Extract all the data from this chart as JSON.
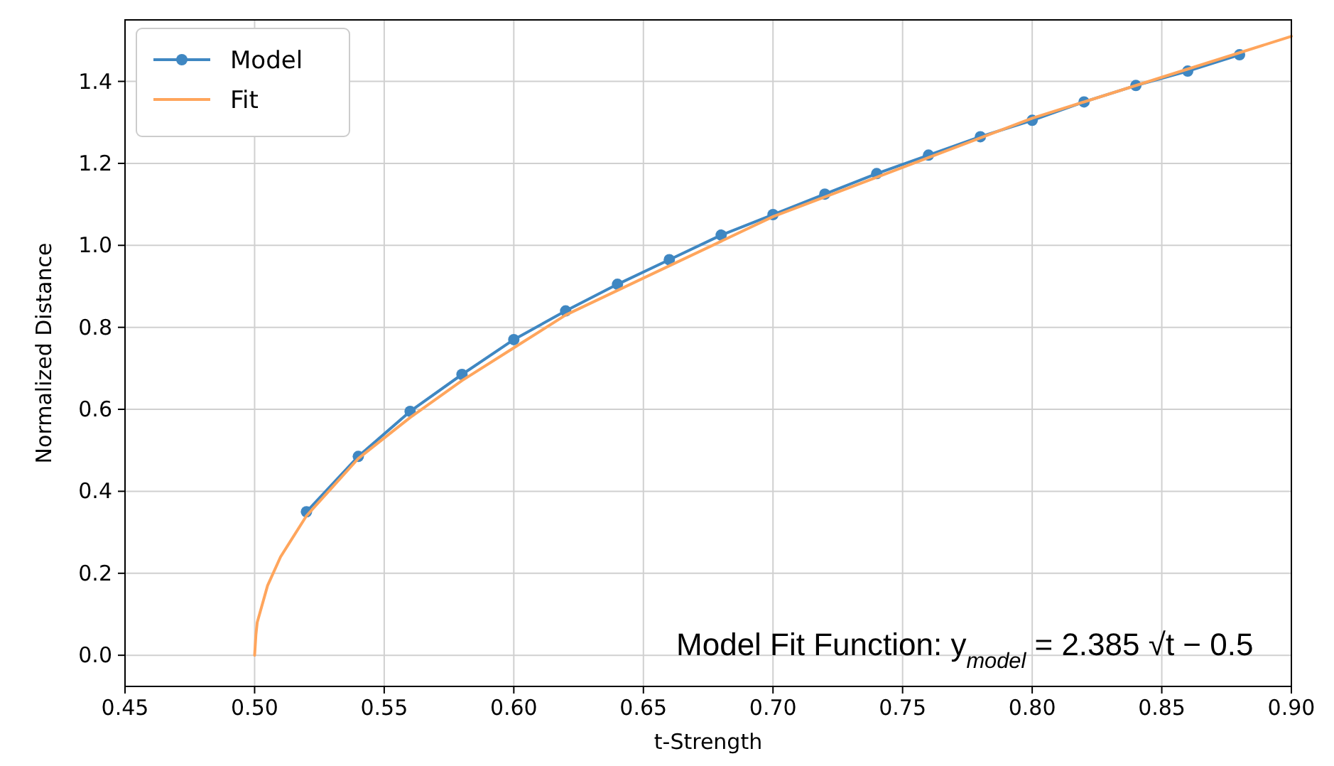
{
  "chart_data": {
    "type": "line",
    "xlabel": "t-Strength",
    "ylabel": "Normalized Distance",
    "xlim": [
      0.45,
      0.9
    ],
    "xticks": [
      {
        "value": 0.45,
        "label": "0.45"
      },
      {
        "value": 0.5,
        "label": "0.50"
      },
      {
        "value": 0.55,
        "label": "0.55"
      },
      {
        "value": 0.6,
        "label": "0.60"
      },
      {
        "value": 0.65,
        "label": "0.65"
      },
      {
        "value": 0.7,
        "label": "0.70"
      },
      {
        "value": 0.75,
        "label": "0.75"
      },
      {
        "value": 0.8,
        "label": "0.80"
      },
      {
        "value": 0.85,
        "label": "0.85"
      },
      {
        "value": 0.9,
        "label": "0.90"
      }
    ],
    "ylim": [
      -0.076,
      1.55
    ],
    "yticks": [
      {
        "value": 0,
        "label": "0.0"
      },
      {
        "value": 0.2,
        "label": "0.2"
      },
      {
        "value": 0.4,
        "label": "0.4"
      },
      {
        "value": 0.6,
        "label": "0.6"
      },
      {
        "value": 0.8,
        "label": "0.8"
      },
      {
        "value": 1,
        "label": "1.0"
      },
      {
        "value": 1.2,
        "label": "1.2"
      },
      {
        "value": 1.4,
        "label": "1.4"
      }
    ],
    "grid": true,
    "legend": "top left",
    "series": [
      {
        "name": "Model",
        "color": "#3f87c2",
        "marker": "circle",
        "x": [
          0.52,
          0.54,
          0.56,
          0.58,
          0.6,
          0.62,
          0.64,
          0.66,
          0.68,
          0.7,
          0.72,
          0.74,
          0.76,
          0.78,
          0.8,
          0.82,
          0.84,
          0.86,
          0.88
        ],
        "values": [
          0.35,
          0.485,
          0.595,
          0.685,
          0.77,
          0.84,
          0.905,
          0.965,
          1.025,
          1.075,
          1.125,
          1.175,
          1.22,
          1.265,
          1.305,
          1.35,
          1.39,
          1.425,
          1.465
        ]
      },
      {
        "name": "Fit",
        "color": "#ffa55c",
        "marker": "none",
        "x": [
          0.5,
          0.5005,
          0.501,
          0.505,
          0.51,
          0.52,
          0.53,
          0.54,
          0.56,
          0.58,
          0.6,
          0.62,
          0.65,
          0.7,
          0.75,
          0.8,
          0.85,
          0.9
        ],
        "values": [
          0,
          0.05,
          0.08,
          0.17,
          0.24,
          0.34,
          0.41,
          0.48,
          0.58,
          0.67,
          0.75,
          0.83,
          0.92,
          1.07,
          1.19,
          1.31,
          1.41,
          1.51
        ]
      }
    ],
    "annotations": [
      "Model Fit Function:  y$_{model}$ = 2.385 √t − 0.5"
    ]
  }
}
